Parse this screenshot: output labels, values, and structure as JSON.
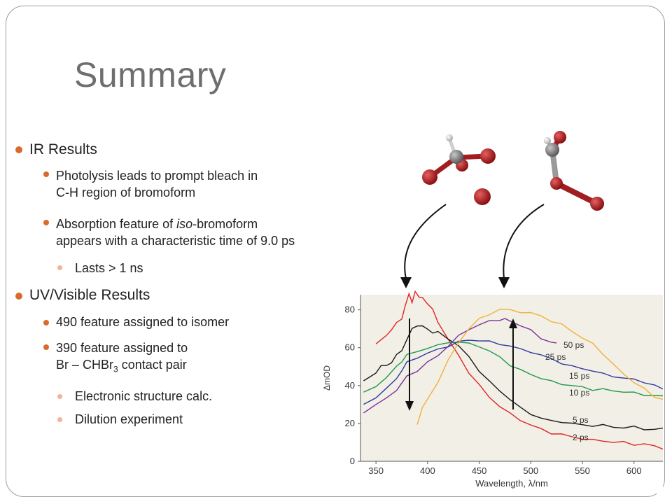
{
  "slide": {
    "title": "Summary",
    "bullets": [
      {
        "text": "IR Results"
      },
      {
        "line1": "Photolysis leads to prompt bleach in",
        "line2": "C-H region of bromoform"
      },
      {
        "pre": "Absorption feature  of ",
        "em": "iso",
        "post": "-bromoform",
        "line2": "appears with a characteristic time of 9.0 ps"
      },
      {
        "text": "Lasts >  1 ns"
      },
      {
        "text": "UV/Visible Results"
      },
      {
        "text": "490 feature assigned to isomer"
      },
      {
        "line1": "390 feature assigned to",
        "pre": "Br – CHBr",
        "sub": "3",
        "post": " contact pair"
      },
      {
        "text": "Electronic structure calc."
      },
      {
        "text": "Dilution experiment"
      }
    ],
    "colors": {
      "bullet": "#d96a2d",
      "bullet_light": "#f2b39a",
      "title": "#6e6e6e",
      "frame": "#9e9e9e"
    }
  },
  "chart_data": {
    "type": "line",
    "xlabel": "Wavelength, λ/nm",
    "ylabel": "ΔmOD",
    "xlim": [
      335,
      628
    ],
    "ylim": [
      0,
      88
    ],
    "xticks": [
      350,
      400,
      450,
      500,
      550,
      600
    ],
    "yticks": [
      0,
      20,
      40,
      60,
      80
    ],
    "background": "#f1efe6",
    "series": [
      {
        "name": "2 ps",
        "color": "#e02424",
        "x": [
          350,
          360,
          365,
          370,
          375,
          378,
          382,
          385,
          388,
          392,
          395,
          400,
          405,
          410,
          420,
          430,
          440,
          450,
          460,
          470,
          480,
          490,
          500,
          510,
          520,
          530,
          540,
          550,
          560,
          570,
          580,
          590,
          600,
          610,
          620,
          628
        ],
        "y": [
          62,
          66,
          70,
          73,
          75,
          82,
          88,
          84,
          90,
          86,
          87,
          83,
          80,
          74,
          64,
          56,
          47,
          40,
          34,
          29,
          25,
          22,
          19,
          17,
          15,
          14,
          13,
          12,
          11,
          11,
          10,
          10,
          9,
          9,
          8,
          7
        ]
      },
      {
        "name": "5 ps",
        "color": "#1a1a1a",
        "x": [
          338,
          345,
          350,
          355,
          360,
          365,
          370,
          375,
          380,
          385,
          390,
          395,
          400,
          405,
          410,
          420,
          430,
          440,
          450,
          460,
          470,
          480,
          490,
          500,
          510,
          520,
          530,
          540,
          550,
          560,
          570,
          580,
          590,
          600,
          610,
          620,
          628
        ],
        "y": [
          42,
          45,
          47,
          50,
          51,
          52,
          56,
          59,
          64,
          70,
          72,
          71,
          70,
          68,
          68,
          65,
          61,
          55,
          48,
          42,
          37,
          33,
          28,
          25,
          23,
          21,
          21,
          20,
          19,
          19,
          19,
          18,
          18,
          18,
          17,
          17,
          17
        ]
      },
      {
        "name": "10 ps",
        "color": "#1f9a4a",
        "x": [
          338,
          350,
          360,
          370,
          375,
          380,
          390,
          400,
          410,
          420,
          430,
          440,
          450,
          460,
          470,
          480,
          490,
          500,
          510,
          520,
          530,
          540,
          550,
          560,
          570,
          580,
          590,
          600,
          610,
          620,
          628
        ],
        "y": [
          36,
          40,
          44,
          50,
          53,
          56,
          58,
          60,
          61,
          63,
          63,
          62,
          61,
          58,
          55,
          51,
          48,
          46,
          44,
          42,
          41,
          40,
          39,
          38,
          38,
          37,
          37,
          36,
          35,
          35,
          34
        ]
      },
      {
        "name": "15 ps",
        "color": "#2e3aa0",
        "x": [
          338,
          350,
          360,
          370,
          375,
          380,
          390,
          400,
          410,
          420,
          430,
          440,
          450,
          460,
          470,
          480,
          490,
          500,
          510,
          520,
          530,
          540,
          550,
          560,
          570,
          580,
          590,
          600,
          610,
          620,
          628
        ],
        "y": [
          30,
          34,
          38,
          44,
          48,
          52,
          55,
          57,
          59,
          61,
          63,
          64,
          64,
          63,
          62,
          61,
          59,
          58,
          56,
          54,
          52,
          50,
          49,
          48,
          46,
          45,
          44,
          43,
          42,
          40,
          38
        ]
      },
      {
        "name": "25 ps",
        "color": "#7b2f9b",
        "x": [
          338,
          350,
          360,
          370,
          375,
          380,
          390,
          400,
          410,
          420,
          430,
          440,
          450,
          460,
          470,
          475,
          480,
          490,
          500,
          510,
          520,
          525
        ],
        "y": [
          26,
          30,
          33,
          38,
          41,
          45,
          48,
          52,
          56,
          61,
          66,
          70,
          72,
          74,
          75,
          75,
          74,
          72,
          69,
          65,
          63,
          62
        ]
      },
      {
        "name": "50 ps",
        "color": "#f2b13a",
        "x": [
          390,
          395,
          400,
          410,
          420,
          430,
          440,
          450,
          460,
          470,
          480,
          490,
          500,
          510,
          520,
          530,
          540,
          550,
          560,
          570,
          580,
          590,
          600,
          610,
          620,
          628
        ],
        "y": [
          20,
          28,
          33,
          42,
          53,
          63,
          70,
          75,
          78,
          80,
          80,
          79,
          78,
          77,
          74,
          72,
          69,
          65,
          62,
          57,
          51,
          46,
          42,
          38,
          34,
          33
        ]
      }
    ],
    "annotations": [
      "50 ps",
      "25 ps",
      "15 ps",
      "10 ps",
      "5 ps",
      "2 ps"
    ]
  }
}
